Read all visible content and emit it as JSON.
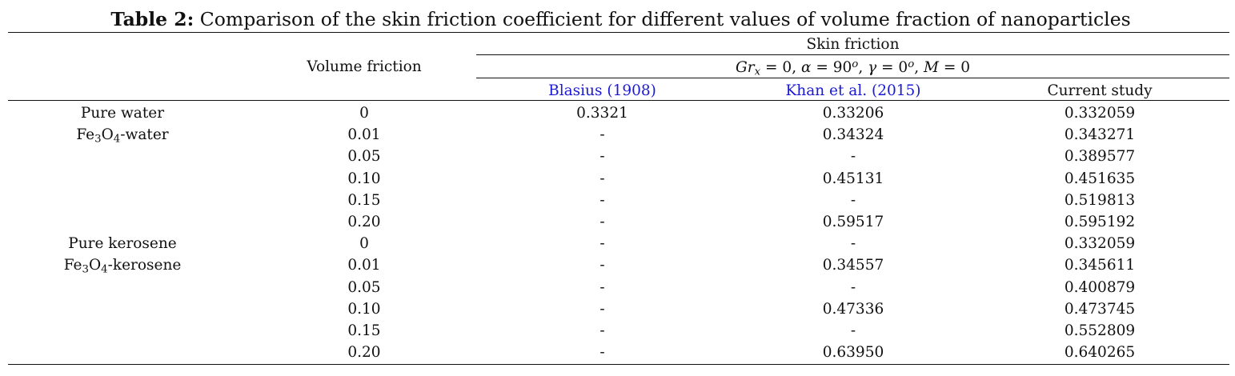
{
  "caption": {
    "label": "Table 2:",
    "text": " Comparison of the skin friction coefficient for different values of volume fraction of nanoparticles"
  },
  "header": {
    "volume_col": "Volume friction",
    "group": "Skin friction",
    "condition_text": "Grx = 0, α = 90o, γ = 0o, M = 0",
    "columns": [
      "Blasius (1908)",
      "Khan et al. (2015)",
      "Current study"
    ]
  },
  "rows": [
    {
      "fluid": "Pure water",
      "phi": "0",
      "blasius": "0.3321",
      "khan": "0.33206",
      "current": "0.332059"
    },
    {
      "fluid": "Fe3O4-water",
      "phi": "0.01",
      "blasius": "-",
      "khan": "0.34324",
      "current": "0.343271"
    },
    {
      "fluid": "",
      "phi": "0.05",
      "blasius": "-",
      "khan": "-",
      "current": "0.389577"
    },
    {
      "fluid": "",
      "phi": "0.10",
      "blasius": "-",
      "khan": "0.45131",
      "current": "0.451635"
    },
    {
      "fluid": "",
      "phi": "0.15",
      "blasius": "-",
      "khan": "-",
      "current": "0.519813"
    },
    {
      "fluid": "",
      "phi": "0.20",
      "blasius": "-",
      "khan": "0.59517",
      "current": "0.595192"
    },
    {
      "fluid": "Pure kerosene",
      "phi": "0",
      "blasius": "-",
      "khan": "-",
      "current": "0.332059"
    },
    {
      "fluid": "Fe3O4-kerosene",
      "phi": "0.01",
      "blasius": "-",
      "khan": "0.34557",
      "current": "0.345611"
    },
    {
      "fluid": "",
      "phi": "0.05",
      "blasius": "-",
      "khan": "-",
      "current": "0.400879"
    },
    {
      "fluid": "",
      "phi": "0.10",
      "blasius": "-",
      "khan": "0.47336",
      "current": "0.473745"
    },
    {
      "fluid": "",
      "phi": "0.15",
      "blasius": "-",
      "khan": "-",
      "current": "0.552809"
    },
    {
      "fluid": "",
      "phi": "0.20",
      "blasius": "-",
      "khan": "0.63950",
      "current": "0.640265"
    }
  ],
  "colors": {
    "link": "#1a1ad6",
    "text": "#111111"
  }
}
